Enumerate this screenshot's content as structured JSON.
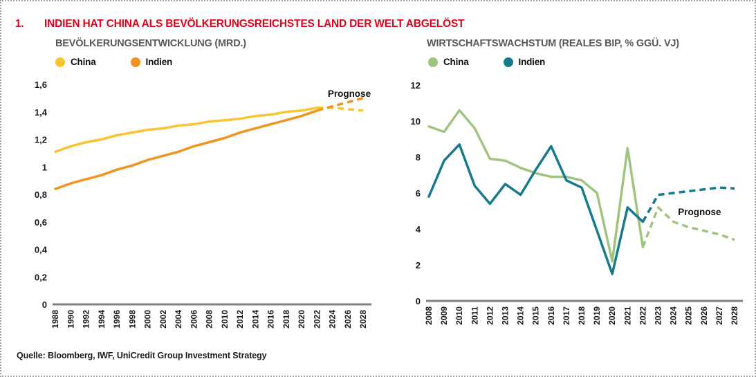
{
  "figure": {
    "number": "1.",
    "title": "INDIEN HAT CHINA ALS BEVÖLKERUNGSREICHSTES LAND DER WELT ABGELÖST",
    "source": "Quelle: Bloomberg, IWF, UniCredit Group Investment Strategy",
    "accent_red": "#e2001a"
  },
  "chart_data": [
    {
      "type": "line",
      "title": "BEVÖLKERUNGSENTWICKLUNG (MRD.)",
      "x": [
        1988,
        1990,
        1992,
        1994,
        1996,
        1998,
        2000,
        2002,
        2004,
        2006,
        2008,
        2010,
        2012,
        2014,
        2016,
        2018,
        2020,
        2022,
        2024,
        2026,
        2028
      ],
      "ylim": [
        0,
        1.6
      ],
      "ytick_step": 0.2,
      "decimal": "comma",
      "grid": false,
      "legend_position": "top",
      "forecast_label": "Prognose",
      "forecast_start_x": 2022,
      "series": [
        {
          "name": "China",
          "color": "#f9c431",
          "values": [
            1.11,
            1.15,
            1.18,
            1.2,
            1.23,
            1.25,
            1.27,
            1.28,
            1.3,
            1.31,
            1.33,
            1.34,
            1.35,
            1.37,
            1.38,
            1.4,
            1.41,
            1.43,
            1.43,
            1.42,
            1.41
          ]
        },
        {
          "name": "Indien",
          "color": "#f0931f",
          "values": [
            0.84,
            0.88,
            0.91,
            0.94,
            0.98,
            1.01,
            1.05,
            1.08,
            1.11,
            1.15,
            1.18,
            1.21,
            1.25,
            1.28,
            1.31,
            1.34,
            1.37,
            1.41,
            1.44,
            1.47,
            1.5
          ]
        }
      ]
    },
    {
      "type": "line",
      "title": "WIRTSCHAFTSWACHSTUM (REALES BIP, % GGÜ. VJ)",
      "x": [
        2008,
        2009,
        2010,
        2011,
        2012,
        2013,
        2014,
        2015,
        2016,
        2017,
        2018,
        2019,
        2020,
        2021,
        2022,
        2023,
        2024,
        2025,
        2026,
        2027,
        2028
      ],
      "ylim": [
        0,
        12
      ],
      "ytick_step": 2,
      "decimal": "point",
      "grid": false,
      "legend_position": "top",
      "forecast_label": "Prognose",
      "forecast_start_x": 2022,
      "series": [
        {
          "name": "China",
          "color": "#9fc47f",
          "values": [
            9.7,
            9.4,
            10.6,
            9.6,
            7.9,
            7.8,
            7.4,
            7.1,
            6.9,
            6.9,
            6.7,
            6.0,
            2.2,
            8.5,
            3.0,
            5.2,
            4.4,
            4.1,
            3.9,
            3.7,
            3.4
          ]
        },
        {
          "name": "Indien",
          "color": "#147a8c",
          "values": [
            5.8,
            7.8,
            8.7,
            6.4,
            5.4,
            6.5,
            5.9,
            7.3,
            8.6,
            6.7,
            6.3,
            3.9,
            1.5,
            5.2,
            4.4,
            5.9,
            6.0,
            6.1,
            6.2,
            6.3,
            6.25
          ]
        }
      ]
    }
  ]
}
